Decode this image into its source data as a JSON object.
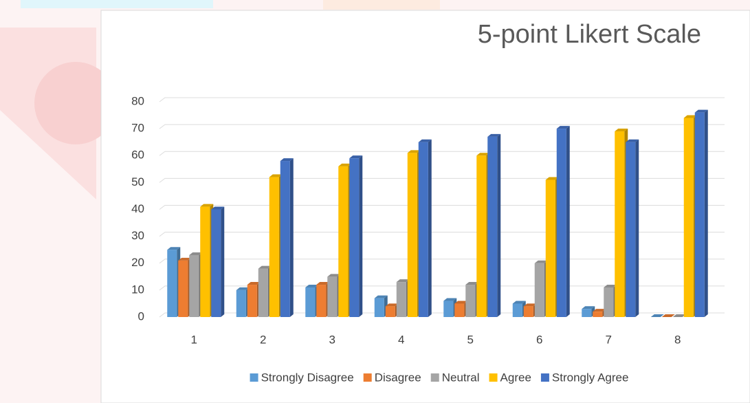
{
  "chart_data": {
    "type": "bar",
    "title": "5-point Likert Scale",
    "categories": [
      "1",
      "2",
      "3",
      "4",
      "5",
      "6",
      "7",
      "8"
    ],
    "series": [
      {
        "name": "Strongly Disagree",
        "color": "#5b9bd5",
        "values": [
          25,
          10,
          11,
          7,
          6,
          5,
          3,
          0
        ]
      },
      {
        "name": "Disagree",
        "color": "#ed7d31",
        "values": [
          21,
          12,
          12,
          4,
          5,
          4,
          2,
          0
        ]
      },
      {
        "name": "Neutral",
        "color": "#a5a5a5",
        "values": [
          23,
          18,
          15,
          13,
          12,
          20,
          11,
          0
        ]
      },
      {
        "name": "Agree",
        "color": "#ffc000",
        "values": [
          41,
          52,
          56,
          61,
          60,
          51,
          69,
          74
        ]
      },
      {
        "name": "Strongly Agree",
        "color": "#4472c4",
        "values": [
          40,
          58,
          59,
          65,
          67,
          70,
          65,
          76
        ]
      }
    ],
    "ylim": [
      0,
      80
    ],
    "yticks": [
      0,
      10,
      20,
      30,
      40,
      50,
      60,
      70,
      80
    ],
    "grid": true,
    "legend": "bottom"
  }
}
